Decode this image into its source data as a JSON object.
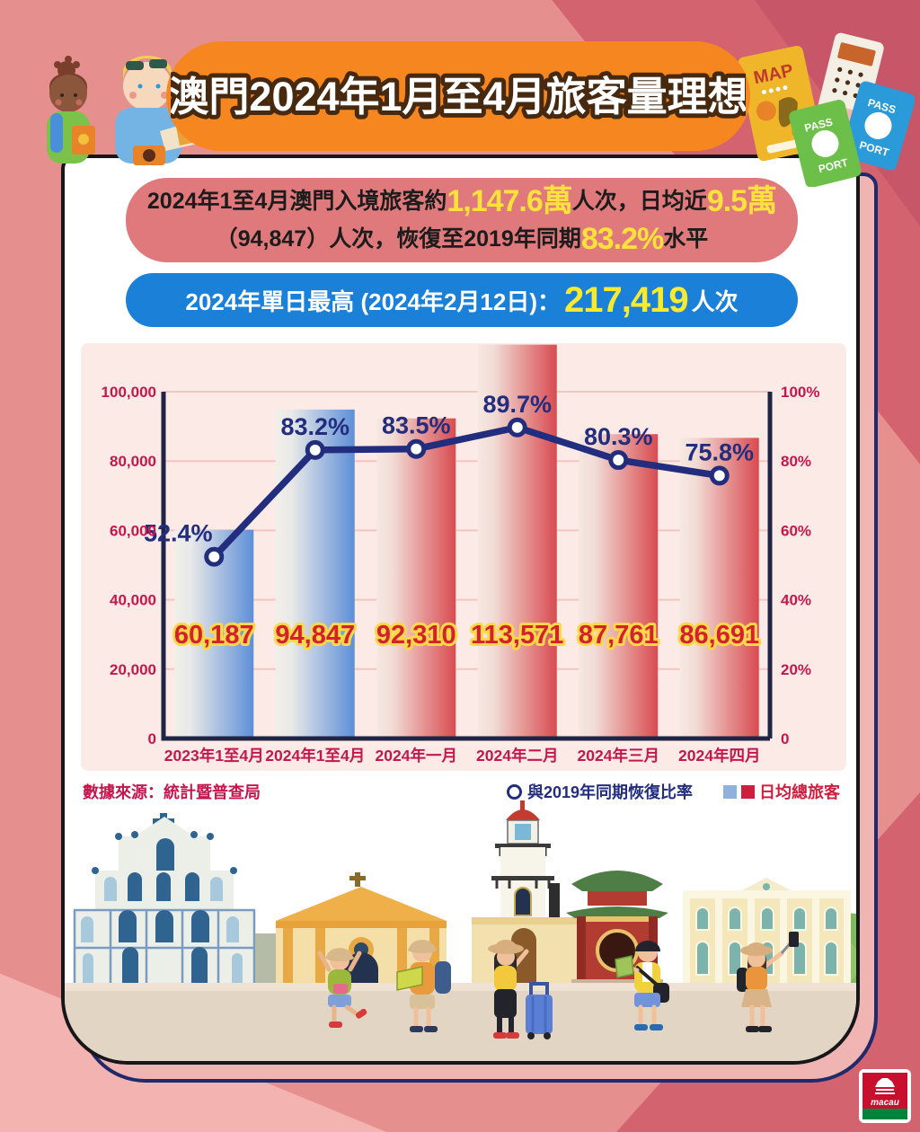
{
  "banner": {
    "title": "澳門2024年1月至4月旅客量理想"
  },
  "summary_box": {
    "line1_text1": "2024年1至4月澳門入境旅客約",
    "line1_highlight1": "1,147.6萬",
    "line1_text2": "人次，日均近",
    "line1_highlight2": "9.5萬",
    "line2_text1": "（94,847）人次，恢復至2019年同期",
    "line2_highlight": "83.2%",
    "line2_text2": "水平"
  },
  "record_box": {
    "label": "2024年單日最高 (2024年2月12日)：",
    "value": "217,419",
    "unit": "人次"
  },
  "chart_data": {
    "type": "bar+line",
    "categories": [
      "2023年1至4月",
      "2024年1至4月",
      "2024年一月",
      "2024年二月",
      "2024年三月",
      "2024年四月"
    ],
    "series": [
      {
        "name": "日均總旅客",
        "type": "bar",
        "axis": "left",
        "values": [
          60187,
          94847,
          92310,
          113571,
          87761,
          86691
        ],
        "labels": [
          "60,187",
          "94,847",
          "92,310",
          "113,571",
          "87,761",
          "86,691"
        ],
        "colors": [
          "blue",
          "blue",
          "red",
          "red",
          "red",
          "red"
        ]
      },
      {
        "name": "與2019年同期恢復比率",
        "type": "line",
        "axis": "right",
        "values": [
          52.4,
          83.2,
          83.5,
          89.7,
          80.3,
          75.8
        ],
        "labels": [
          "52.4%",
          "83.2%",
          "83.5%",
          "89.7%",
          "80.3%",
          "75.8%"
        ]
      }
    ],
    "left_axis": {
      "min": 0,
      "max": 100000,
      "ticks": [
        "100,000",
        "80,000",
        "60,000",
        "40,000",
        "20,000",
        "0"
      ]
    },
    "right_axis": {
      "min": 0,
      "max": 100,
      "ticks": [
        "100%",
        "80%",
        "60%",
        "40%",
        "20%",
        "0"
      ]
    },
    "grid": true,
    "legend_position": "bottom-right",
    "source": "數據來源：統計暨普查局"
  },
  "decor": {
    "map_label": "MAP",
    "passport_green_line1": "PASS",
    "passport_green_line2": "PORT",
    "passport_blue_line1": "PASS",
    "passport_blue_line2": "PORT",
    "logo_text": "macau"
  },
  "colors": {
    "banner_orange": "#f6861f",
    "summary_pink": "#e0797c",
    "record_blue": "#1a80d8",
    "highlight_yellow": "#ffe13b",
    "record_value_yellow": "#f8ea2e",
    "line_navy": "#232d7e",
    "axis_tick_crimson": "#c3174e",
    "bar_red": "#d84b50",
    "bar_blue": "#5e8fd8",
    "bar_label_red": "#d5202d",
    "bar_label_outline": "#ffd84a",
    "chart_panel_pink": "#fbeae6",
    "background_salmon": "#e5908e",
    "background_rose": "#d2636f",
    "card_border": "#17171b",
    "offset_frame_navy": "#1e2a6b"
  }
}
